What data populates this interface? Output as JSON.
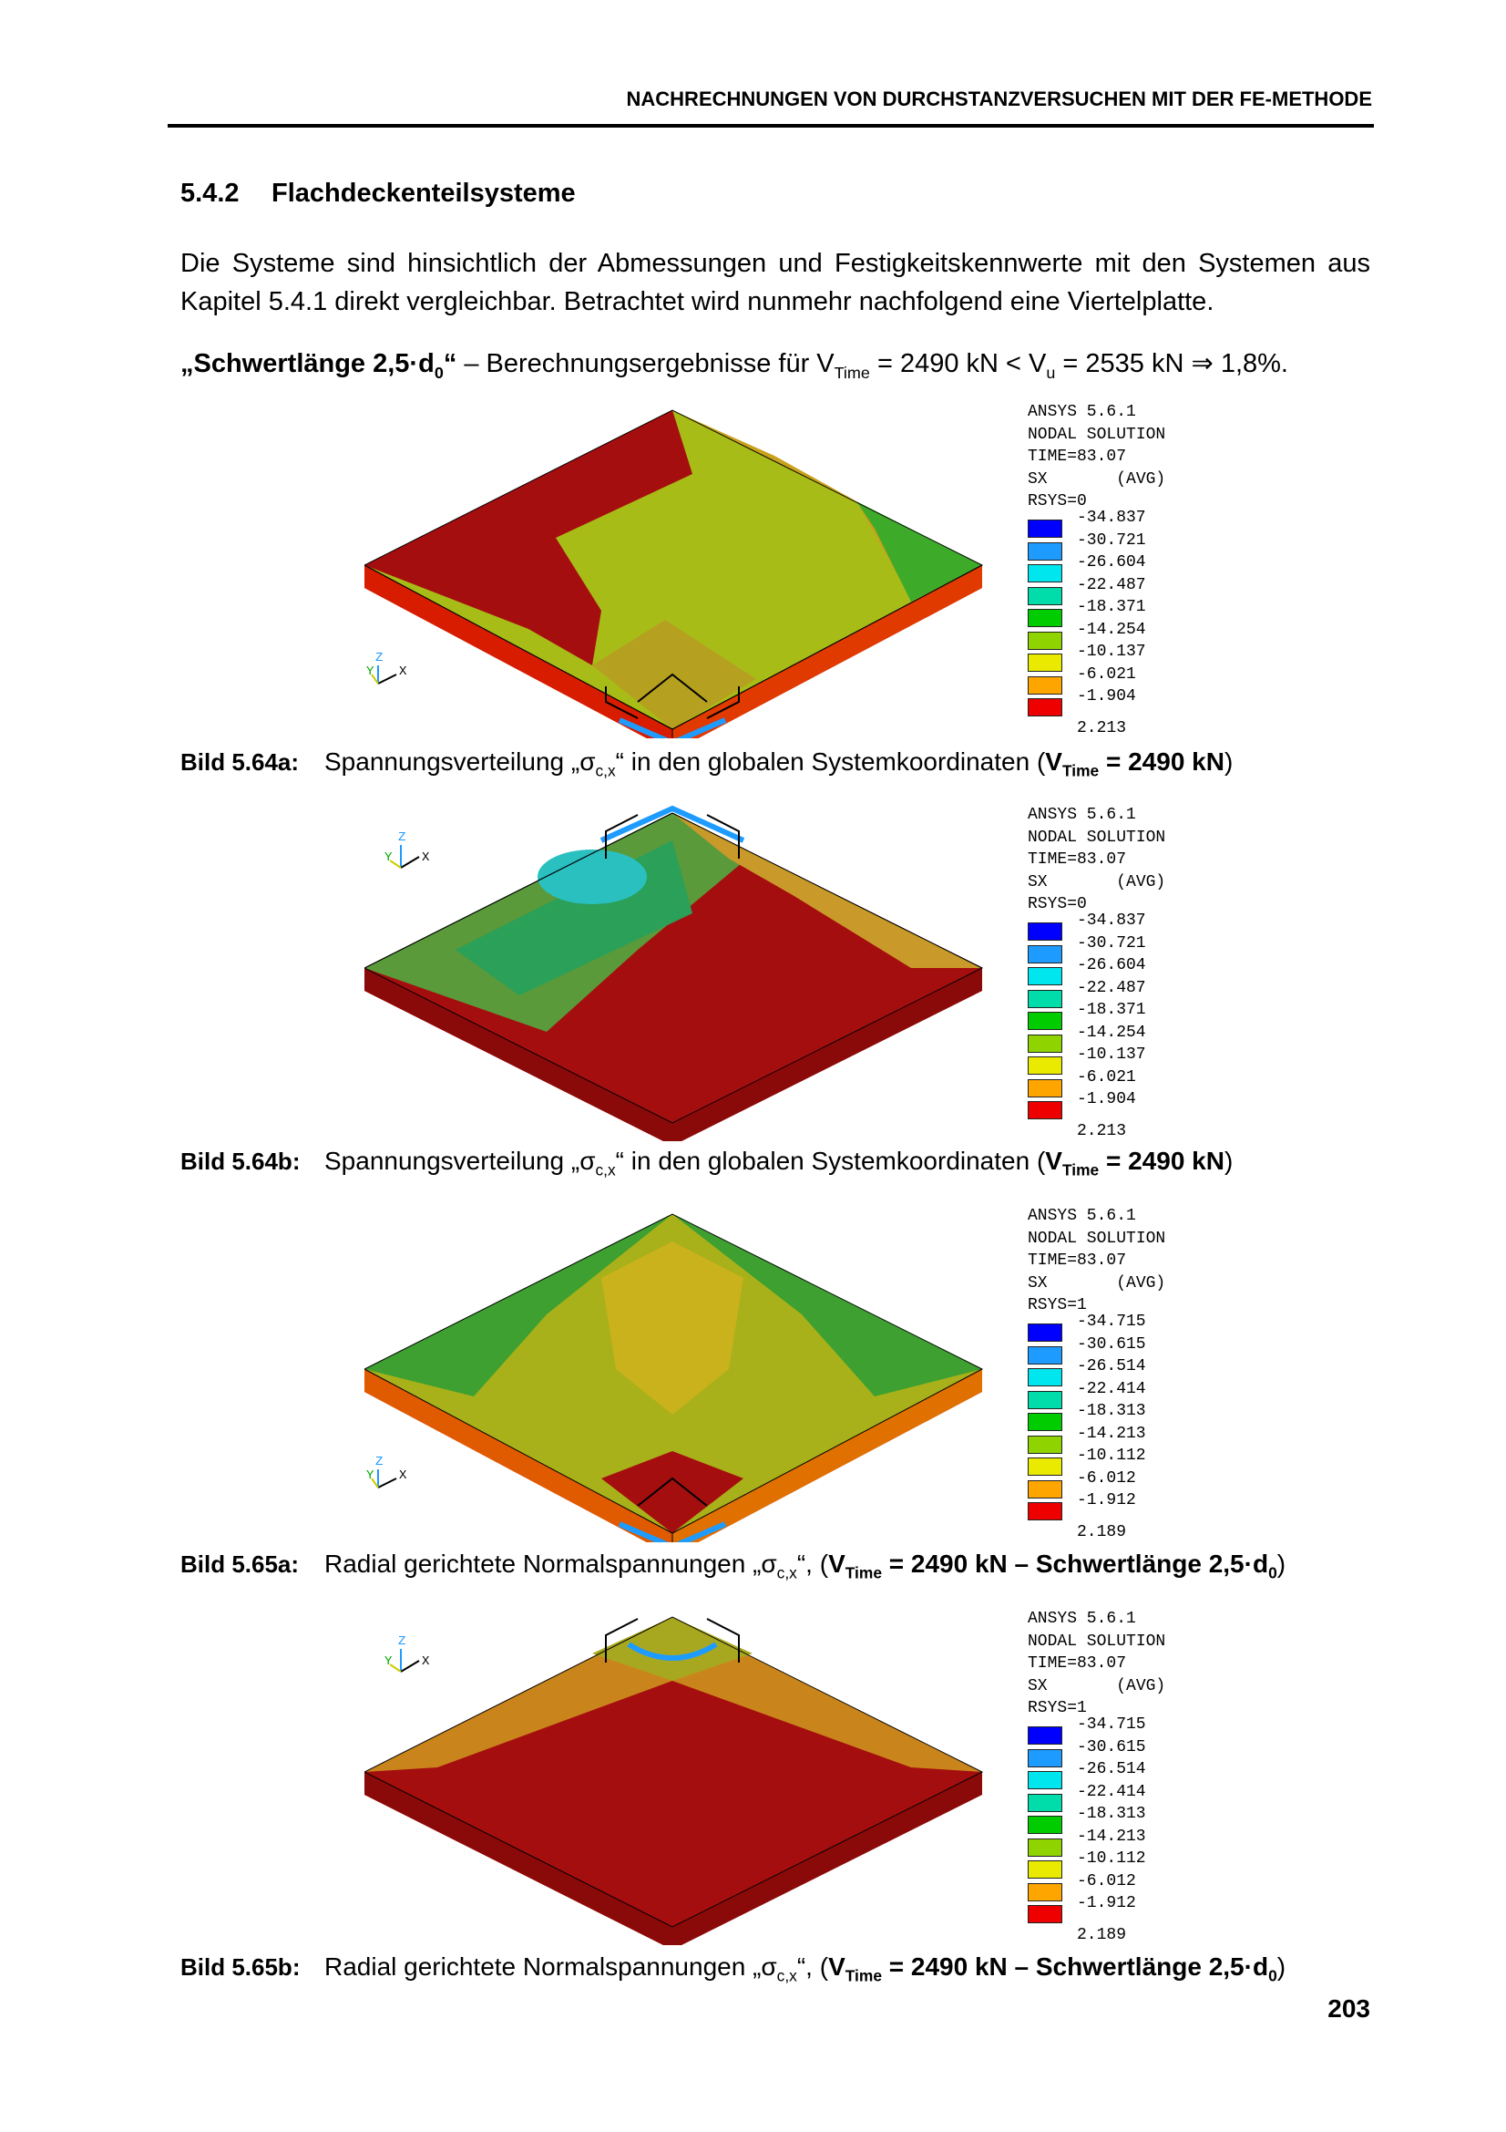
{
  "header": {
    "running_head": "NACHRECHNUNGEN VON DURCHSTANZVERSUCHEN MIT DER FE-METHODE"
  },
  "section": {
    "number": "5.4.2",
    "title": "Flachdeckenteilsysteme"
  },
  "paragraph": "Die Systeme sind hinsichtlich der Abmessungen und Festigkeitskennwerte mit den Systemen aus Kapitel 5.4.1 direkt vergleichbar. Betrachtet wird nunmehr nachfolgend eine Viertelplatte.",
  "result_line": {
    "label": "„Schwertlänge 2,5·d",
    "label_sub": "0",
    "label_end": "“",
    "text_a": " – Berechnungsergebnisse für V",
    "sub_time": "Time",
    "text_b": " = 2490 kN < V",
    "sub_u": "u",
    "text_c": " = 2535 kN ⇒ 1,8%."
  },
  "ansys": {
    "version": "ANSYS 5.6.1",
    "solution": "NODAL SOLUTION",
    "time": "TIME=83.07",
    "sx": "SX       (AVG)",
    "rsys0": "RSYS=0",
    "rsys1": "RSYS=1"
  },
  "legend_colors": [
    "#0000ff",
    "#1e9bff",
    "#00e6ee",
    "#00ddaa",
    "#00cc00",
    "#8fd400",
    "#eaea00",
    "#ffa500",
    "#ee0000"
  ],
  "legend_a": [
    "-34.837",
    "-30.721",
    "-26.604",
    "-22.487",
    "-18.371",
    "-14.254",
    "-10.137",
    "-6.021",
    "-1.904",
    "2.213"
  ],
  "legend_b": [
    "-34.715",
    "-30.615",
    "-26.514",
    "-22.414",
    "-18.313",
    "-14.213",
    "-10.112",
    "-6.012",
    "-1.912",
    "2.189"
  ],
  "triad": {
    "z": "Z",
    "y": "Y",
    "x": "X"
  },
  "captions": {
    "c1": {
      "label": "Bild 5.64a:",
      "text": "Spannungsverteilung „σ",
      "sub": "c,x",
      "rest": "“ in den globalen Systemkoordinaten (",
      "v": "V",
      "vsub": "Time",
      "vtext": " = 2490 kN",
      "end": ")"
    },
    "c2": {
      "label": "Bild 5.64b:",
      "text": "Spannungsverteilung „σ",
      "sub": "c,x",
      "rest": "“ in den globalen Systemkoordinaten (",
      "v": "V",
      "vsub": "Time",
      "vtext": " = 2490 kN",
      "end": ")"
    },
    "c3": {
      "label": "Bild 5.65a:",
      "text": "Radial gerichtete Normalspannungen „σ",
      "sub": "c,x",
      "rest": "“, (",
      "v": "V",
      "vsub": "Time",
      "vtext": " = 2490 kN – Schwertlänge 2,5·d",
      "vsub2": "0",
      "end": ")"
    },
    "c4": {
      "label": "Bild 5.65b:",
      "text": "Radial gerichtete Normalspannungen „σ",
      "sub": "c,x",
      "rest": "“, (",
      "v": "V",
      "vsub": "Time",
      "vtext": " = 2490 kN – Schwertlänge 2,5·d",
      "vsub2": "0",
      "end": ")"
    }
  },
  "page_number": "203"
}
